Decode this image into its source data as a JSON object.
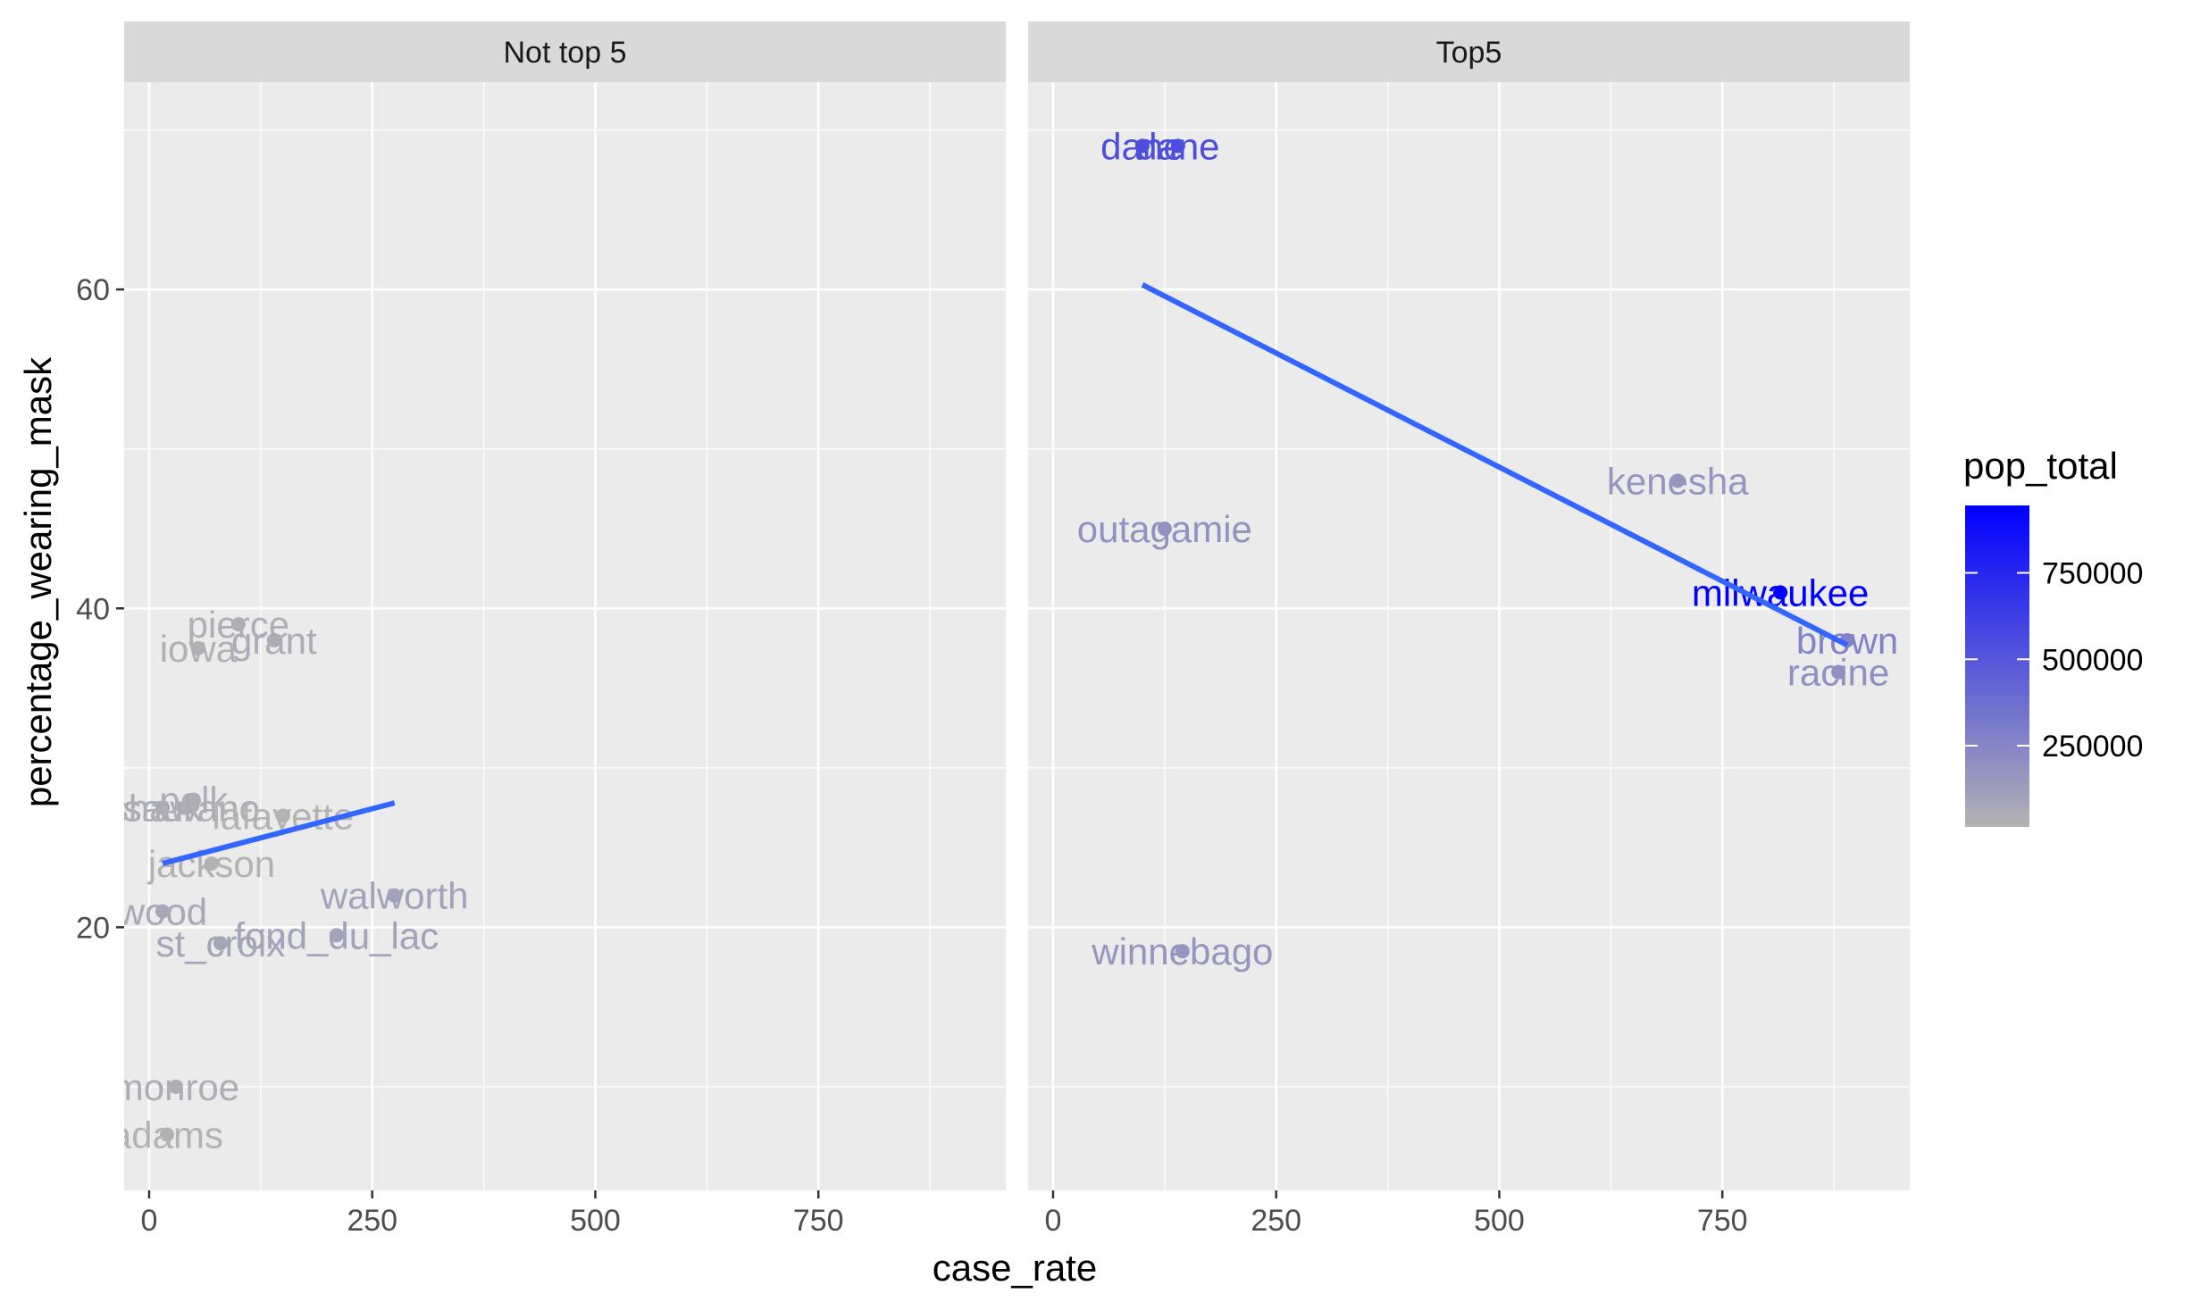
{
  "chart_data": {
    "type": "scatter",
    "xlabel": "case_rate",
    "ylabel": "percentage_wearing_mask",
    "xlim": [
      -28,
      960
    ],
    "ylim": [
      3.5,
      73
    ],
    "x_ticks": [
      0,
      250,
      500,
      750
    ],
    "x_tick_labels": [
      "0",
      "250",
      "500",
      "750"
    ],
    "x_minor": [
      125,
      375,
      625,
      875
    ],
    "y_ticks": [
      20,
      40,
      60
    ],
    "y_tick_labels": [
      "20",
      "40",
      "60"
    ],
    "y_minor": [
      10,
      30,
      50,
      70
    ],
    "grid": true,
    "facets": [
      {
        "title": "Not top 5",
        "points": [
          {
            "label": "pierce",
            "x": 100,
            "y": 39,
            "pop": 40000
          },
          {
            "label": "iowa",
            "x": 55,
            "y": 37.5,
            "pop": 24000
          },
          {
            "label": "grant",
            "x": 140,
            "y": 38,
            "pop": 52000
          },
          {
            "label": "polk",
            "x": 50,
            "y": 28,
            "pop": 44000
          },
          {
            "label": "sauk",
            "x": 15,
            "y": 27.5,
            "pop": 64000
          },
          {
            "label": "shawano",
            "x": 40,
            "y": 27.5,
            "pop": 41000
          },
          {
            "label": "lafayette",
            "x": 150,
            "y": 27,
            "pop": 17000
          },
          {
            "label": "jackson",
            "x": 70,
            "y": 24,
            "pop": 21000
          },
          {
            "label": "walworth",
            "x": 275,
            "y": 22,
            "pop": 103000
          },
          {
            "label": "wood",
            "x": 15,
            "y": 21,
            "pop": 73000
          },
          {
            "label": "fond_du_lac",
            "x": 210,
            "y": 19.5,
            "pop": 103000
          },
          {
            "label": "st_croix",
            "x": 80,
            "y": 19,
            "pop": 90000
          },
          {
            "label": "monroe",
            "x": 30,
            "y": 10,
            "pop": 46000
          },
          {
            "label": "adams",
            "x": 20,
            "y": 7,
            "pop": 20000
          }
        ],
        "trend": {
          "x": [
            15,
            275
          ],
          "y": [
            24,
            27.8
          ]
        }
      },
      {
        "title": "Top5",
        "points": [
          {
            "label": "dane",
            "x": 100,
            "y": 69,
            "pop": 546000
          },
          {
            "label": "dane",
            "x": 140,
            "y": 69,
            "pop": 546000
          },
          {
            "label": "kenesha",
            "x": 700,
            "y": 48,
            "pop": 169000
          },
          {
            "label": "outagamie",
            "x": 125,
            "y": 45,
            "pop": 187000
          },
          {
            "label": "milwaukee",
            "x": 815,
            "y": 41,
            "pop": 945000
          },
          {
            "label": "brown",
            "x": 890,
            "y": 38,
            "pop": 264000
          },
          {
            "label": "racine",
            "x": 880,
            "y": 36,
            "pop": 196000
          },
          {
            "label": "winnebago",
            "x": 145,
            "y": 18.5,
            "pop": 171000
          }
        ],
        "trend": {
          "x": [
            100,
            890
          ],
          "y": [
            60.3,
            37.7
          ]
        }
      }
    ],
    "color_scale": {
      "name": "pop_total",
      "low_color": "#b3b3b3",
      "high_color": "#0000ff",
      "min": 15000,
      "max": 945000,
      "breaks": [
        250000,
        500000,
        750000
      ],
      "break_labels": [
        "250000",
        "500000",
        "750000"
      ]
    },
    "trend_color": "#3366ff"
  }
}
